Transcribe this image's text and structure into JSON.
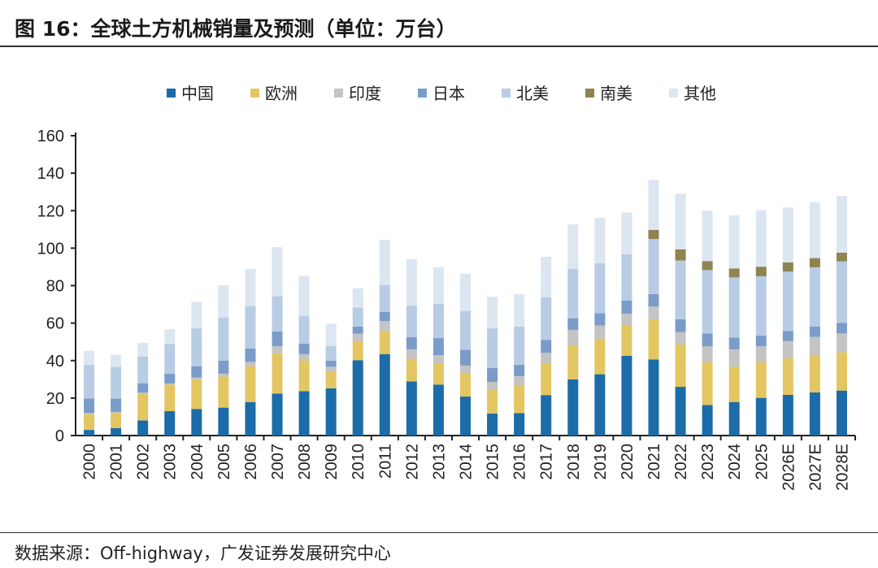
{
  "header": {
    "title": "图 16：全球土方机械销量及预测（单位：万台）"
  },
  "footer": {
    "source": "数据来源：Off-highway，广发证券发展研究中心"
  },
  "chart_data": {
    "type": "bar",
    "stacked": true,
    "title": "全球土方机械销量及预测（单位：万台）",
    "xlabel": "",
    "ylabel": "",
    "ylim": [
      0,
      160
    ],
    "yticks": [
      0,
      20,
      40,
      60,
      80,
      100,
      120,
      140,
      160
    ],
    "grid": false,
    "legend_position": "top-center",
    "categories": [
      "2000",
      "2001",
      "2002",
      "2003",
      "2004",
      "2005",
      "2006",
      "2007",
      "2008",
      "2009",
      "2010",
      "2011",
      "2012",
      "2013",
      "2014",
      "2015",
      "2016",
      "2017",
      "2018",
      "2019",
      "2020",
      "2021",
      "2022",
      "2023",
      "2024",
      "2025",
      "2026E",
      "2027E",
      "2028E"
    ],
    "series": [
      {
        "name": "中国",
        "color": "#1b6ca8",
        "values": [
          3,
          4,
          8.1,
          13,
          14.2,
          14.9,
          17.9,
          22.4,
          23.7,
          25.2,
          40.2,
          43.5,
          28.9,
          27.2,
          20.8,
          11.7,
          12,
          21.6,
          30,
          32.7,
          42.5,
          40.6,
          26,
          16.3,
          17.9,
          20.1,
          21.7,
          23,
          24
        ]
      },
      {
        "name": "欧洲",
        "color": "#e3c662",
        "values": [
          8.4,
          8,
          14.2,
          14.2,
          15.8,
          16.6,
          19,
          21.5,
          16.5,
          8.9,
          10.1,
          12.3,
          12,
          11.4,
          12.7,
          13,
          14.5,
          16.6,
          18.1,
          19,
          16.5,
          21.3,
          22.6,
          22.9,
          18.8,
          18.9,
          19.6,
          19.9,
          20.4
        ]
      },
      {
        "name": "印度",
        "color": "#c4c4c4",
        "values": [
          0.6,
          0.6,
          0.6,
          0.6,
          0.9,
          1.5,
          2.4,
          3.8,
          3.2,
          2.6,
          4,
          5.3,
          5.1,
          4.3,
          3.8,
          3.9,
          5.2,
          5.9,
          8.3,
          7,
          6,
          6.9,
          6.6,
          8.4,
          9.3,
          8.6,
          9.1,
          9.7,
          10.1
        ]
      },
      {
        "name": "日本",
        "color": "#7b9cc9",
        "values": [
          7.8,
          7.1,
          5,
          5.2,
          6.1,
          6.9,
          7.2,
          7.8,
          5.7,
          3.2,
          3.9,
          4.9,
          6.5,
          9.1,
          8.5,
          7.4,
          6,
          6.9,
          6.2,
          6.6,
          7,
          6.7,
          6.8,
          6.9,
          6.3,
          5.7,
          5.4,
          5.5,
          5.6
        ]
      },
      {
        "name": "北美",
        "color": "#b8cce4",
        "values": [
          17.9,
          17,
          14.3,
          15.9,
          20.2,
          23.1,
          22.6,
          18.8,
          14.8,
          7.8,
          10.2,
          14.4,
          16.8,
          18.4,
          20.7,
          21.2,
          20.4,
          22.7,
          26.3,
          26.6,
          24.8,
          29.4,
          31.4,
          33.8,
          32.1,
          31.7,
          31.7,
          31.7,
          32.8
        ]
      },
      {
        "name": "南美",
        "color": "#8e8450",
        "values": [
          0,
          0,
          0,
          0,
          0,
          0,
          0,
          0,
          0,
          0,
          0,
          0,
          0,
          0,
          0,
          0,
          0,
          0,
          0,
          0,
          0,
          4.8,
          6,
          4.8,
          4.8,
          5.1,
          4.9,
          4.9,
          4.7
        ]
      },
      {
        "name": "其他",
        "color": "#dce6f1",
        "values": [
          7.5,
          6.4,
          7.2,
          7.8,
          14.1,
          17.2,
          19.8,
          26.2,
          21.4,
          12,
          10.2,
          24.1,
          24.9,
          19.5,
          19.8,
          16.8,
          17.4,
          21.7,
          23.8,
          24.3,
          22.2,
          26.8,
          29.7,
          26.9,
          28.3,
          30.2,
          29.3,
          29.8,
          30.3
        ]
      }
    ]
  }
}
